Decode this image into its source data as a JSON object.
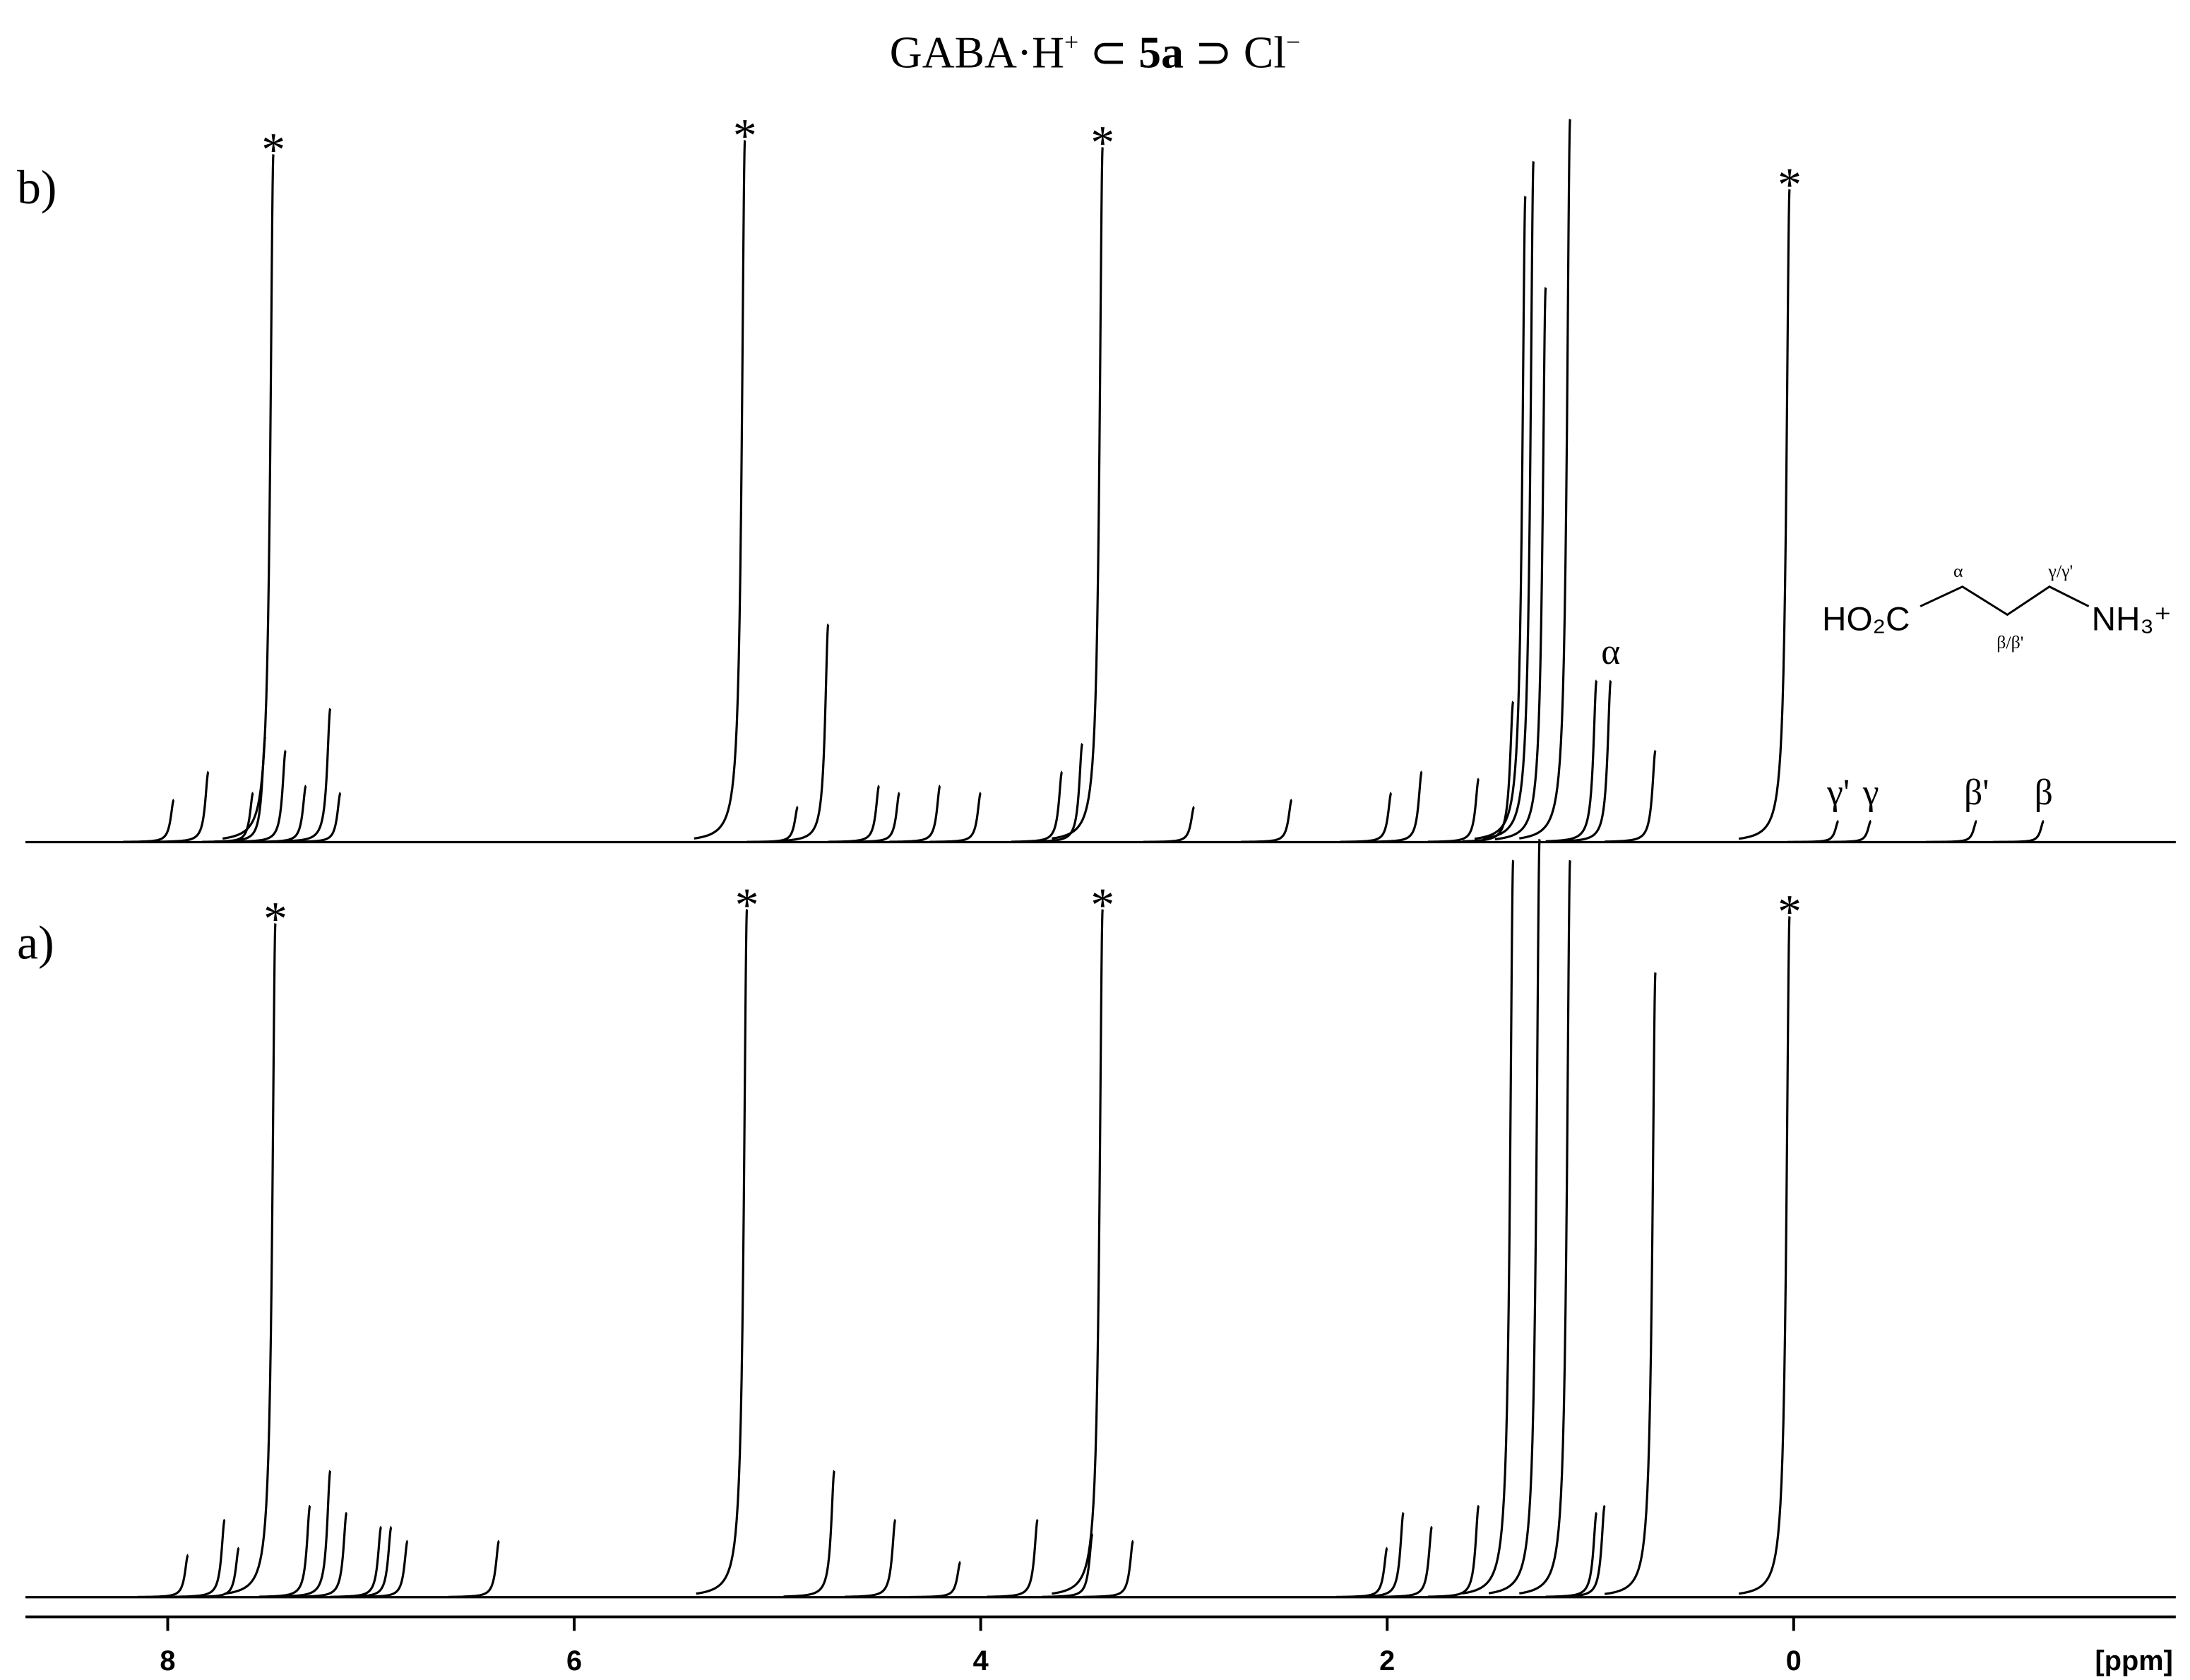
{
  "chart_data": {
    "type": "nmr",
    "title_parts": [
      "GABA·H",
      "+",
      " ⊂ ",
      "5a",
      " ⊃ Cl",
      "−"
    ],
    "xlabel": "[ppm]",
    "xlim": [
      8.7,
      -1.88
    ],
    "xticks": [
      8,
      6,
      4,
      2,
      0
    ],
    "ylim": [
      0,
      110
    ],
    "series": [
      {
        "name": "b)",
        "x": [
          7.97,
          7.8,
          7.58,
          7.52,
          7.48,
          7.42,
          7.32,
          7.2,
          7.15,
          5.16,
          4.9,
          4.75,
          4.5,
          4.4,
          4.2,
          4.0,
          3.6,
          3.5,
          3.4,
          2.95,
          2.47,
          1.98,
          1.83,
          1.55,
          1.38,
          1.32,
          1.28,
          1.22,
          1.1,
          0.97,
          0.9,
          0.68,
          0.02,
          -0.22,
          -0.38,
          -0.9,
          -1.23
        ],
        "values": [
          6,
          10,
          7,
          15,
          98,
          13,
          8,
          19,
          7,
          100,
          5,
          31,
          8,
          7,
          8,
          7,
          10,
          14,
          99,
          5,
          6,
          7,
          10,
          9,
          20,
          92,
          97,
          79,
          103,
          23,
          23,
          13,
          93,
          3,
          3,
          3,
          3
        ],
        "labels": [
          null,
          null,
          null,
          null,
          "*",
          null,
          null,
          null,
          null,
          "*",
          null,
          null,
          null,
          null,
          null,
          null,
          null,
          null,
          "*",
          null,
          null,
          null,
          null,
          null,
          null,
          null,
          null,
          null,
          null,
          null,
          "α",
          null,
          "*",
          "γ'",
          "γ",
          "β'",
          "β"
        ]
      },
      {
        "name": "a)",
        "x": [
          7.9,
          7.72,
          7.65,
          7.47,
          7.3,
          7.2,
          7.12,
          6.95,
          6.9,
          6.82,
          6.37,
          5.15,
          4.72,
          4.42,
          4.1,
          3.72,
          3.45,
          3.4,
          3.25,
          2.0,
          1.92,
          1.78,
          1.55,
          1.38,
          1.25,
          1.1,
          0.97,
          0.93,
          0.68,
          0.02
        ],
        "values": [
          6,
          11,
          7,
          96,
          13,
          18,
          12,
          10,
          10,
          8,
          8,
          98,
          18,
          11,
          5,
          11,
          9,
          98,
          8,
          7,
          12,
          10,
          13,
          105,
          108,
          105,
          12,
          13,
          89,
          97
        ],
        "labels": [
          null,
          null,
          null,
          "*",
          null,
          null,
          null,
          null,
          null,
          null,
          null,
          "*",
          null,
          null,
          null,
          null,
          null,
          "*",
          null,
          null,
          null,
          null,
          null,
          null,
          null,
          null,
          null,
          null,
          null,
          "*"
        ]
      }
    ],
    "structure": {
      "left": "HO₂C",
      "right": "NH₃⁺",
      "alpha": "α",
      "beta": "β/β'",
      "gamma": "γ/γ'"
    }
  }
}
